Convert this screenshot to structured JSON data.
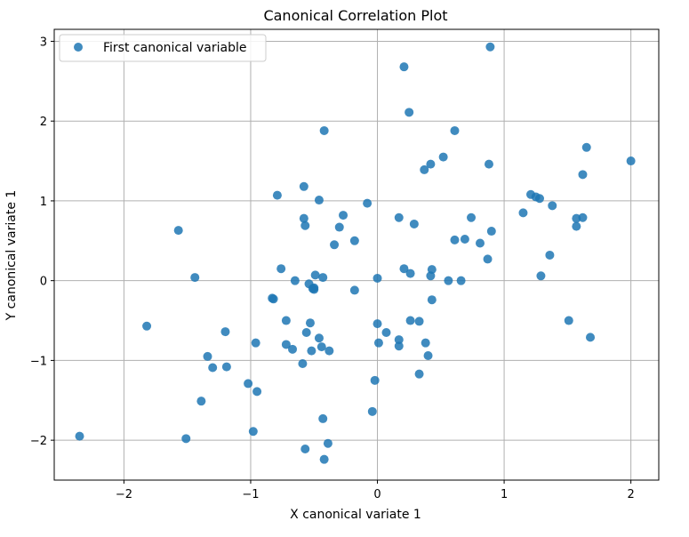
{
  "chart_data": {
    "type": "scatter",
    "title": "Canonical Correlation Plot",
    "xlabel": "X canonical variate 1",
    "ylabel": "Y canonical variate 1",
    "xlim": [
      -2.55,
      2.22
    ],
    "ylim": [
      -2.5,
      3.15
    ],
    "xticks": [
      -2,
      -1,
      0,
      1,
      2
    ],
    "yticks": [
      -2,
      -1,
      0,
      1,
      2,
      3
    ],
    "grid": true,
    "legend_position": "top-left",
    "series": [
      {
        "name": "First canonical variable",
        "color": "#1f77b4",
        "points": [
          [
            -2.35,
            -1.95
          ],
          [
            -1.82,
            -0.57
          ],
          [
            -1.57,
            0.63
          ],
          [
            -1.51,
            -1.98
          ],
          [
            -1.44,
            0.04
          ],
          [
            -1.39,
            -1.51
          ],
          [
            -1.34,
            -0.95
          ],
          [
            -1.3,
            -1.09
          ],
          [
            -1.2,
            -0.64
          ],
          [
            -1.19,
            -1.08
          ],
          [
            -1.02,
            -1.29
          ],
          [
            -0.98,
            -1.89
          ],
          [
            -0.96,
            -0.78
          ],
          [
            -0.95,
            -1.39
          ],
          [
            -0.83,
            -0.22
          ],
          [
            -0.82,
            -0.23
          ],
          [
            -0.79,
            1.07
          ],
          [
            -0.76,
            0.15
          ],
          [
            -0.72,
            -0.5
          ],
          [
            -0.72,
            -0.8
          ],
          [
            -0.67,
            -0.86
          ],
          [
            -0.65,
            0.0
          ],
          [
            -0.59,
            -1.04
          ],
          [
            -0.58,
            1.18
          ],
          [
            -0.58,
            0.78
          ],
          [
            -0.57,
            0.69
          ],
          [
            -0.57,
            -2.11
          ],
          [
            -0.56,
            -0.65
          ],
          [
            -0.54,
            -0.04
          ],
          [
            -0.53,
            -0.53
          ],
          [
            -0.52,
            -0.88
          ],
          [
            -0.51,
            -0.1
          ],
          [
            -0.5,
            -0.11
          ],
          [
            -0.5,
            -0.09
          ],
          [
            -0.49,
            0.07
          ],
          [
            -0.46,
            -0.72
          ],
          [
            -0.46,
            1.01
          ],
          [
            -0.44,
            -0.83
          ],
          [
            -0.43,
            -1.73
          ],
          [
            -0.43,
            0.04
          ],
          [
            -0.42,
            1.88
          ],
          [
            -0.42,
            -2.24
          ],
          [
            -0.39,
            -2.04
          ],
          [
            -0.38,
            -0.88
          ],
          [
            -0.34,
            0.45
          ],
          [
            -0.3,
            0.67
          ],
          [
            -0.27,
            0.82
          ],
          [
            -0.18,
            0.5
          ],
          [
            -0.18,
            -0.12
          ],
          [
            -0.08,
            0.97
          ],
          [
            -0.04,
            -1.64
          ],
          [
            -0.02,
            -1.25
          ],
          [
            0.0,
            0.03
          ],
          [
            0.0,
            -0.54
          ],
          [
            0.01,
            -0.78
          ],
          [
            0.07,
            -0.65
          ],
          [
            0.17,
            0.79
          ],
          [
            0.17,
            -0.74
          ],
          [
            0.17,
            -0.82
          ],
          [
            0.21,
            2.68
          ],
          [
            0.21,
            0.15
          ],
          [
            0.25,
            2.11
          ],
          [
            0.26,
            -0.5
          ],
          [
            0.26,
            0.09
          ],
          [
            0.29,
            0.71
          ],
          [
            0.33,
            -0.51
          ],
          [
            0.33,
            -1.17
          ],
          [
            0.37,
            1.39
          ],
          [
            0.38,
            -0.78
          ],
          [
            0.4,
            -0.94
          ],
          [
            0.42,
            1.46
          ],
          [
            0.42,
            0.06
          ],
          [
            0.43,
            0.14
          ],
          [
            0.43,
            -0.24
          ],
          [
            0.52,
            1.55
          ],
          [
            0.56,
            0.0
          ],
          [
            0.61,
            1.88
          ],
          [
            0.61,
            0.51
          ],
          [
            0.66,
            0.0
          ],
          [
            0.69,
            0.52
          ],
          [
            0.74,
            0.79
          ],
          [
            0.81,
            0.47
          ],
          [
            0.87,
            0.27
          ],
          [
            0.88,
            1.46
          ],
          [
            0.89,
            2.93
          ],
          [
            0.9,
            0.62
          ],
          [
            1.15,
            0.85
          ],
          [
            1.21,
            1.08
          ],
          [
            1.25,
            1.05
          ],
          [
            1.28,
            1.03
          ],
          [
            1.29,
            0.06
          ],
          [
            1.36,
            0.32
          ],
          [
            1.38,
            0.94
          ],
          [
            1.51,
            -0.5
          ],
          [
            1.57,
            0.68
          ],
          [
            1.57,
            0.78
          ],
          [
            1.62,
            0.79
          ],
          [
            1.62,
            1.33
          ],
          [
            1.65,
            1.67
          ],
          [
            1.68,
            -0.71
          ],
          [
            2.0,
            1.5
          ]
        ]
      }
    ]
  }
}
